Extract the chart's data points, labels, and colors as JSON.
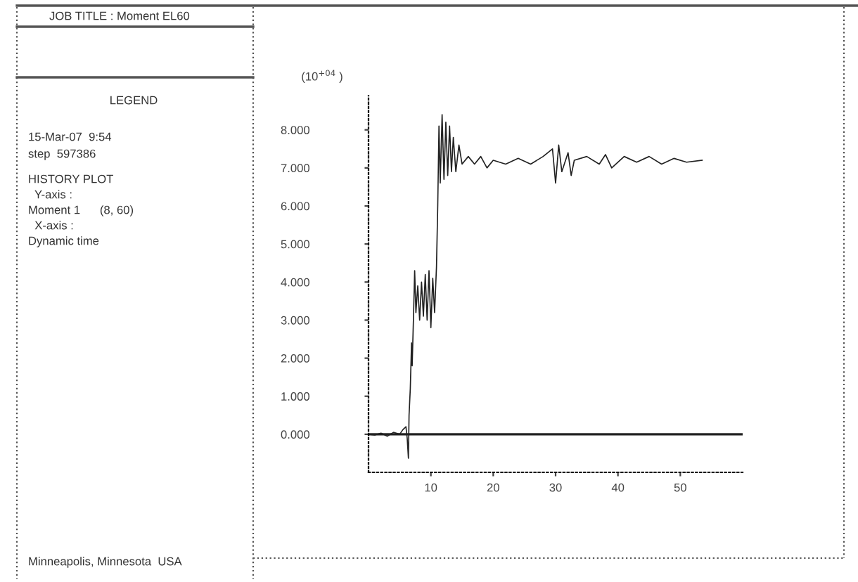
{
  "chart_data": {
    "type": "line",
    "title": "JOB TITLE : Moment EL60",
    "subtitle": "LEGEND",
    "ylabel": "(10$^{+04}$ )",
    "annotations": [
      "15-Mar-07  9:54",
      "step  597386",
      "HISTORY PLOT",
      "  Y-axis :",
      "Moment 1      (8, 60)",
      "  X-axis :",
      "Dynamic time",
      "Minneapolis, Minnesota  USA"
    ],
    "x": [
      0,
      1,
      2,
      3,
      4,
      5,
      5.5,
      6,
      6.2,
      6.4,
      6.5,
      6.7,
      6.9,
      7.0,
      7.2,
      7.4,
      7.6,
      7.9,
      8.2,
      8.5,
      8.8,
      9.1,
      9.4,
      9.7,
      10.0,
      10.3,
      10.6,
      10.9,
      11.1,
      11.3,
      11.5,
      11.8,
      12.1,
      12.4,
      12.7,
      13.0,
      13.3,
      13.6,
      14,
      14.5,
      15,
      16,
      17,
      18,
      19,
      20,
      22,
      24,
      26,
      28,
      29.5,
      30,
      30.5,
      31,
      32,
      32.5,
      33,
      35,
      37,
      38,
      39,
      41,
      43,
      45,
      47,
      49,
      51,
      53.5
    ],
    "series": [
      {
        "color": "#222222",
        "values": [
          0.0,
          -0.02,
          0.03,
          -0.05,
          0.05,
          0.0,
          0.12,
          0.2,
          -0.1,
          -0.63,
          0.5,
          1.2,
          2.4,
          1.8,
          3.0,
          4.3,
          3.2,
          3.9,
          3.0,
          4.0,
          3.1,
          4.2,
          3.0,
          4.3,
          2.8,
          4.1,
          3.2,
          4.4,
          6.0,
          8.1,
          6.6,
          8.4,
          6.7,
          8.2,
          6.8,
          8.1,
          6.9,
          7.8,
          6.9,
          7.6,
          7.1,
          7.3,
          7.1,
          7.3,
          7.0,
          7.2,
          7.1,
          7.25,
          7.1,
          7.3,
          7.5,
          6.6,
          7.6,
          6.9,
          7.4,
          6.8,
          7.2,
          7.3,
          7.1,
          7.35,
          7.0,
          7.3,
          7.15,
          7.3,
          7.1,
          7.25,
          7.15,
          7.2
        ]
      }
    ],
    "ref_lines": [
      {
        "axis": "y",
        "value": 0,
        "color": "#222222"
      }
    ],
    "xlim": [
      0,
      60
    ],
    "ylim": [
      -1,
      8.9
    ],
    "xticks": [
      10,
      20,
      30,
      40,
      50
    ],
    "yticks": [
      {
        "value": 0,
        "label": "0.000"
      },
      {
        "value": 1,
        "label": "1.000"
      },
      {
        "value": 2,
        "label": "2.000"
      },
      {
        "value": 3,
        "label": "3.000"
      },
      {
        "value": 4,
        "label": "4.000"
      },
      {
        "value": 5,
        "label": "5.000"
      },
      {
        "value": 6,
        "label": "6.000"
      },
      {
        "value": 7,
        "label": "7.000"
      },
      {
        "value": 8,
        "label": "8.000"
      }
    ],
    "grid": false,
    "legend": false
  }
}
